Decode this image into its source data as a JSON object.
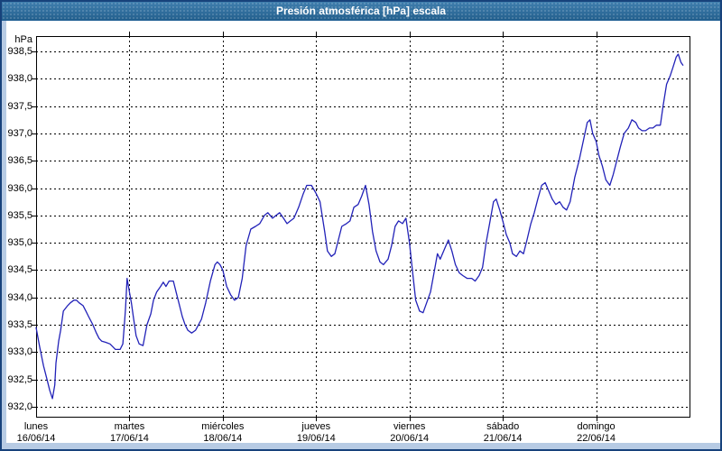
{
  "window": {
    "title": "Presión atmosférica [hPa] escala"
  },
  "colors": {
    "frame_border": "#17427b",
    "frame_fill": "#b7cbe4",
    "titlebar": "#2a70a5",
    "titlebar_text": "#ffffff",
    "plot_bg": "#ffffff",
    "gridline": "#000000",
    "line": "#2222b8"
  },
  "chart_data": {
    "type": "line",
    "title": "Presión atmosférica [hPa] escala",
    "grid": true,
    "legend": false,
    "y_axis": {
      "unit": "hPa",
      "min": 932.0,
      "max": 938.5,
      "step": 0.5,
      "tick_labels": [
        "938,5",
        "938,0",
        "937,5",
        "937,0",
        "936,5",
        "936,0",
        "935,5",
        "935,0",
        "934,5",
        "934,0",
        "933,5",
        "933,0",
        "932,5",
        "932,0"
      ]
    },
    "x_axis": {
      "unit": "hours",
      "hours_total": 168,
      "days": [
        {
          "name": "lunes",
          "date": "16/06/14"
        },
        {
          "name": "martes",
          "date": "17/06/14"
        },
        {
          "name": "miércoles",
          "date": "18/06/14"
        },
        {
          "name": "jueves",
          "date": "19/06/14"
        },
        {
          "name": "viernes",
          "date": "20/06/14"
        },
        {
          "name": "sábado",
          "date": "21/06/14"
        },
        {
          "name": "domingo",
          "date": "22/06/14"
        }
      ]
    },
    "series": [
      {
        "name": "Presión atmosférica",
        "color": "#2222b8",
        "points_hour_hpa": [
          [
            0,
            933.45
          ],
          [
            0.9,
            933.1
          ],
          [
            1.9,
            932.75
          ],
          [
            2.8,
            932.5
          ],
          [
            3.5,
            932.3
          ],
          [
            4.2,
            932.15
          ],
          [
            4.8,
            932.4
          ],
          [
            5.1,
            932.8
          ],
          [
            5.8,
            933.2
          ],
          [
            6.3,
            933.4
          ],
          [
            7,
            933.75
          ],
          [
            8.1,
            933.85
          ],
          [
            8.8,
            933.9
          ],
          [
            9.7,
            933.95
          ],
          [
            10.4,
            933.95
          ],
          [
            11.1,
            933.9
          ],
          [
            12.1,
            933.85
          ],
          [
            12.8,
            933.75
          ],
          [
            13.5,
            933.65
          ],
          [
            14.6,
            933.5
          ],
          [
            15.5,
            933.35
          ],
          [
            16.2,
            933.25
          ],
          [
            16.9,
            933.2
          ],
          [
            17.9,
            933.18
          ],
          [
            19,
            933.15
          ],
          [
            19.7,
            933.1
          ],
          [
            20.4,
            933.05
          ],
          [
            21.6,
            933.05
          ],
          [
            22.3,
            933.15
          ],
          [
            22.7,
            933.5
          ],
          [
            23,
            933.8
          ],
          [
            23.4,
            934.35
          ],
          [
            24,
            934.1
          ],
          [
            24.5,
            933.9
          ],
          [
            25,
            933.65
          ],
          [
            25.7,
            933.3
          ],
          [
            26.5,
            933.15
          ],
          [
            27.5,
            933.12
          ],
          [
            28.5,
            933.5
          ],
          [
            29.5,
            933.7
          ],
          [
            30.2,
            933.95
          ],
          [
            31,
            934.1
          ],
          [
            32,
            934.2
          ],
          [
            32.7,
            934.28
          ],
          [
            33.4,
            934.2
          ],
          [
            34.2,
            934.3
          ],
          [
            35.3,
            934.3
          ],
          [
            36,
            934.1
          ],
          [
            36.7,
            933.9
          ],
          [
            37.6,
            933.65
          ],
          [
            38.3,
            933.5
          ],
          [
            39,
            933.4
          ],
          [
            40,
            933.35
          ],
          [
            41,
            933.4
          ],
          [
            42.5,
            933.6
          ],
          [
            43.6,
            933.9
          ],
          [
            44.8,
            934.3
          ],
          [
            46,
            934.6
          ],
          [
            46.6,
            934.65
          ],
          [
            47.3,
            934.6
          ],
          [
            48,
            934.5
          ],
          [
            49,
            934.2
          ],
          [
            50,
            934.05
          ],
          [
            51,
            933.95
          ],
          [
            52,
            934
          ],
          [
            53,
            934.35
          ],
          [
            54,
            934.95
          ],
          [
            55.2,
            935.25
          ],
          [
            56.4,
            935.3
          ],
          [
            57.5,
            935.35
          ],
          [
            58.7,
            935.5
          ],
          [
            59.6,
            935.55
          ],
          [
            60.8,
            935.45
          ],
          [
            61.7,
            935.5
          ],
          [
            62.6,
            935.55
          ],
          [
            63.6,
            935.45
          ],
          [
            64.5,
            935.35
          ],
          [
            65.4,
            935.4
          ],
          [
            66.3,
            935.45
          ],
          [
            67.5,
            935.65
          ],
          [
            68.7,
            935.9
          ],
          [
            69.6,
            936.05
          ],
          [
            70.8,
            936.05
          ],
          [
            72,
            935.9
          ],
          [
            73,
            935.75
          ],
          [
            74.2,
            935.2
          ],
          [
            74.9,
            934.85
          ],
          [
            75.9,
            934.75
          ],
          [
            76.8,
            934.8
          ],
          [
            77.7,
            935.05
          ],
          [
            78.6,
            935.3
          ],
          [
            79.8,
            935.35
          ],
          [
            80.7,
            935.4
          ],
          [
            81.7,
            935.65
          ],
          [
            82.8,
            935.7
          ],
          [
            83.7,
            935.85
          ],
          [
            84.7,
            936.05
          ],
          [
            85.6,
            935.7
          ],
          [
            86.5,
            935.2
          ],
          [
            87.4,
            934.85
          ],
          [
            88.4,
            934.65
          ],
          [
            89.3,
            934.6
          ],
          [
            90.5,
            934.7
          ],
          [
            91.4,
            934.95
          ],
          [
            92.3,
            935.3
          ],
          [
            93.2,
            935.4
          ],
          [
            94.2,
            935.35
          ],
          [
            95.1,
            935.45
          ],
          [
            96,
            935
          ],
          [
            96.9,
            934.4
          ],
          [
            97.6,
            933.95
          ],
          [
            98.6,
            933.75
          ],
          [
            99.5,
            933.72
          ],
          [
            100.4,
            933.9
          ],
          [
            101.4,
            934.1
          ],
          [
            102.3,
            934.45
          ],
          [
            103.2,
            934.8
          ],
          [
            103.9,
            934.7
          ],
          [
            104.8,
            934.85
          ],
          [
            106,
            935.05
          ],
          [
            106.9,
            934.85
          ],
          [
            107.8,
            934.6
          ],
          [
            108.8,
            934.45
          ],
          [
            109.7,
            934.4
          ],
          [
            110.8,
            934.35
          ],
          [
            112,
            934.35
          ],
          [
            112.9,
            934.3
          ],
          [
            113.9,
            934.4
          ],
          [
            114.8,
            934.55
          ],
          [
            115.7,
            935
          ],
          [
            116.6,
            935.35
          ],
          [
            117.6,
            935.75
          ],
          [
            118.3,
            935.8
          ],
          [
            119.2,
            935.6
          ],
          [
            120,
            935.4
          ],
          [
            120.9,
            935.15
          ],
          [
            121.8,
            935
          ],
          [
            122.5,
            934.8
          ],
          [
            123.5,
            934.75
          ],
          [
            124.4,
            934.85
          ],
          [
            125.3,
            934.8
          ],
          [
            126.2,
            935.05
          ],
          [
            127.2,
            935.35
          ],
          [
            128.1,
            935.55
          ],
          [
            129,
            935.8
          ],
          [
            130,
            936.05
          ],
          [
            130.9,
            936.1
          ],
          [
            131.8,
            935.95
          ],
          [
            132.7,
            935.8
          ],
          [
            133.6,
            935.7
          ],
          [
            134.6,
            935.75
          ],
          [
            135.5,
            935.65
          ],
          [
            136.4,
            935.6
          ],
          [
            137.3,
            935.75
          ],
          [
            138.5,
            936.2
          ],
          [
            139.6,
            936.5
          ],
          [
            140.8,
            936.9
          ],
          [
            141.7,
            937.2
          ],
          [
            142.4,
            937.25
          ],
          [
            143.1,
            937
          ],
          [
            144,
            936.85
          ],
          [
            144.7,
            936.6
          ],
          [
            145.6,
            936.4
          ],
          [
            146.5,
            936.15
          ],
          [
            147.5,
            936.05
          ],
          [
            148.4,
            936.25
          ],
          [
            149.3,
            936.5
          ],
          [
            150.2,
            936.75
          ],
          [
            151.2,
            937
          ],
          [
            152.3,
            937.1
          ],
          [
            153.2,
            937.25
          ],
          [
            154.2,
            937.2
          ],
          [
            154.9,
            937.1
          ],
          [
            155.8,
            937.05
          ],
          [
            156.7,
            937.05
          ],
          [
            157.7,
            937.1
          ],
          [
            158.6,
            937.1
          ],
          [
            159.5,
            937.15
          ],
          [
            160.5,
            937.15
          ],
          [
            161.2,
            937.5
          ],
          [
            162.1,
            937.9
          ],
          [
            163,
            938.05
          ],
          [
            163.7,
            938.2
          ],
          [
            164.6,
            938.4
          ],
          [
            165.1,
            938.45
          ],
          [
            165.8,
            938.3
          ],
          [
            166.3,
            938.25
          ]
        ]
      }
    ]
  }
}
